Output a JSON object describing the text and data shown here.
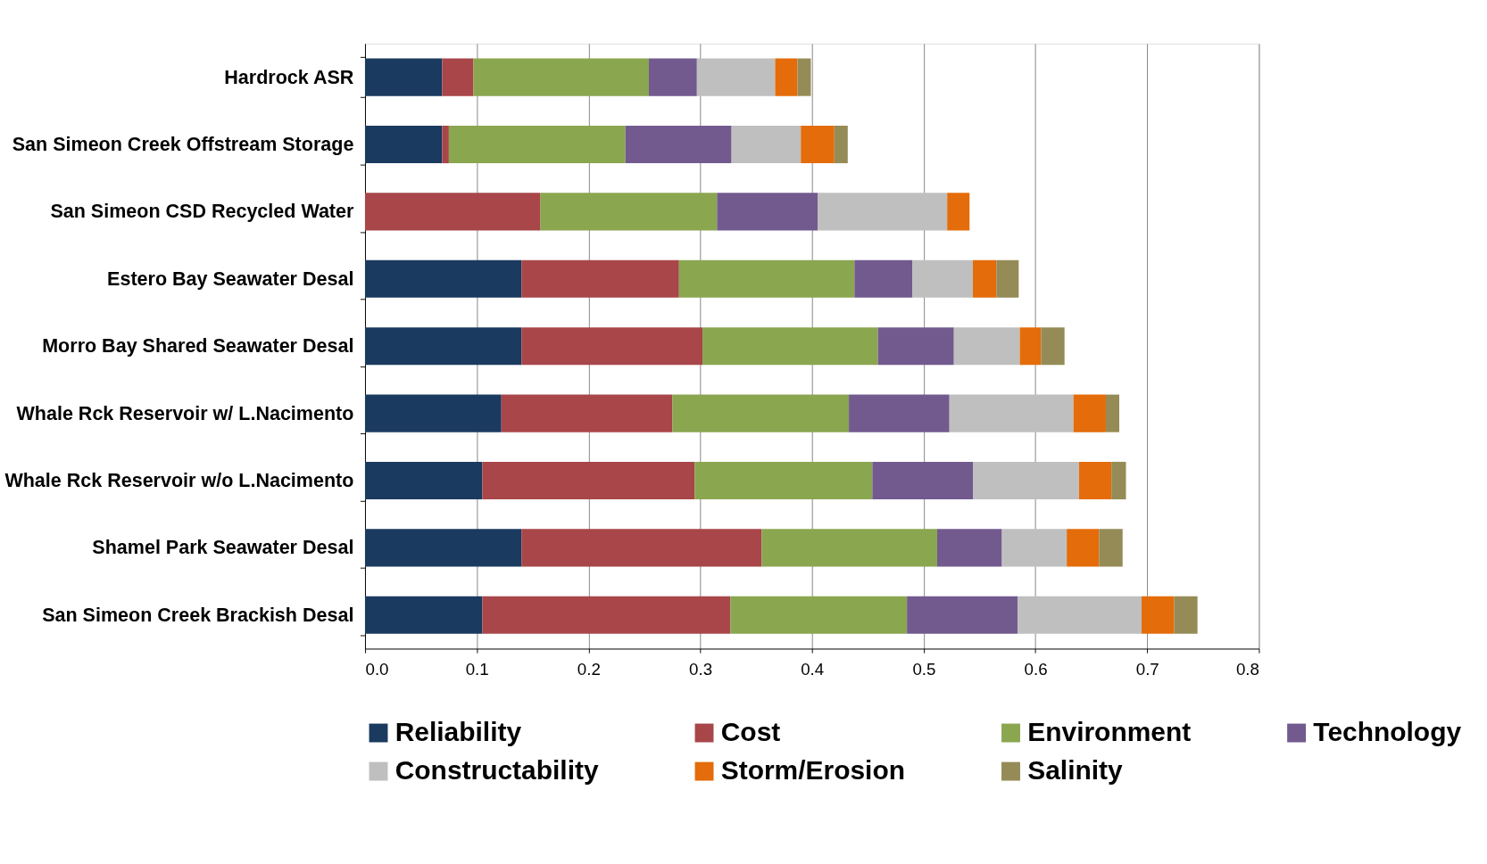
{
  "chart_data": {
    "type": "bar",
    "orientation": "horizontal",
    "stacked": true,
    "categories": [
      "Hardrock ASR",
      "San Simeon Creek Offstream Storage",
      "San Simeon CSD Recycled Water",
      "Estero Bay Seawater Desal",
      "Morro Bay Shared Seawater Desal",
      "Whale Rck Reservoir w/ L.Nacimento",
      "Whale Rck Reservoir w/o L.Nacimento",
      "Shamel Park Seawater Desal",
      "San Simeon Creek Brackish Desal"
    ],
    "series": [
      {
        "name": "Reliability",
        "color": "#1b3a5f",
        "values": [
          0.069,
          0.069,
          0,
          0.14,
          0.14,
          0.122,
          0.105,
          0.14,
          0.105
        ]
      },
      {
        "name": "Cost",
        "color": "#a8464a",
        "values": [
          0.028,
          0.006,
          0.157,
          0.141,
          0.162,
          0.153,
          0.19,
          0.215,
          0.222
        ]
      },
      {
        "name": "Environment",
        "color": "#8aa64f",
        "values": [
          0.157,
          0.158,
          0.158,
          0.157,
          0.157,
          0.158,
          0.159,
          0.157,
          0.158
        ]
      },
      {
        "name": "Technology",
        "color": "#725a8f",
        "values": [
          0.043,
          0.095,
          0.09,
          0.052,
          0.068,
          0.09,
          0.09,
          0.058,
          0.099
        ]
      },
      {
        "name": "Constructability",
        "color": "#bfbfbf",
        "values": [
          0.07,
          0.062,
          0.116,
          0.054,
          0.059,
          0.111,
          0.095,
          0.058,
          0.111
        ]
      },
      {
        "name": "Storm/Erosion",
        "color": "#e46c0a",
        "values": [
          0.02,
          0.03,
          0.02,
          0.021,
          0.019,
          0.029,
          0.029,
          0.029,
          0.029
        ]
      },
      {
        "name": "Salinity",
        "color": "#958b56",
        "values": [
          0.012,
          0.012,
          0,
          0.02,
          0.021,
          0.012,
          0.013,
          0.021,
          0.021
        ]
      }
    ],
    "xlim": [
      0,
      0.8
    ],
    "xticks": [
      {
        "value": 0,
        "label": "0.0"
      },
      0.1,
      0.2,
      0.3,
      0.4,
      0.5,
      0.6,
      0.7,
      0.8
    ],
    "grid": "x",
    "legend": "bottom"
  }
}
